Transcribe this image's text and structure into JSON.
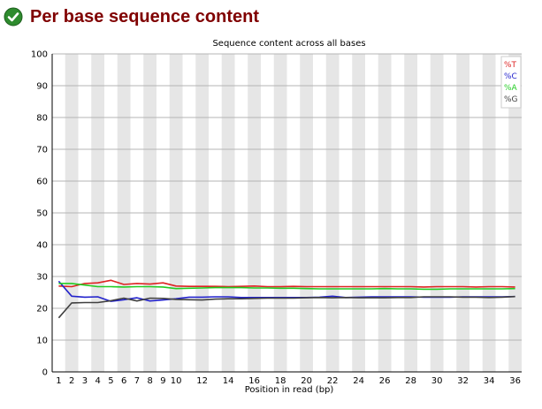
{
  "header": {
    "title": "Per base sequence content",
    "status_icon": "check-circle-icon",
    "status_color": "#2e8b2e"
  },
  "chart_data": {
    "type": "line",
    "title": "Sequence content across all bases",
    "xlabel": "Position in read (bp)",
    "ylabel": "",
    "ylim": [
      0,
      100
    ],
    "y_ticks": [
      "0",
      "10",
      "20",
      "30",
      "40",
      "50",
      "60",
      "70",
      "80",
      "90",
      "100"
    ],
    "categories": [
      "1",
      "2",
      "3",
      "4",
      "5",
      "6",
      "7",
      "8",
      "9",
      "10",
      "11",
      "12",
      "13",
      "14",
      "15",
      "16",
      "17",
      "18",
      "19",
      "20",
      "21",
      "22",
      "23",
      "24",
      "25",
      "26",
      "27",
      "28",
      "29",
      "30",
      "31",
      "32",
      "33",
      "34",
      "35",
      "36"
    ],
    "x_tick_labels": [
      "1",
      "2",
      "3",
      "4",
      "5",
      "6",
      "7",
      "8",
      "9",
      "10",
      "12",
      "14",
      "16",
      "18",
      "20",
      "22",
      "24",
      "26",
      "28",
      "30",
      "32",
      "34",
      "36"
    ],
    "grid": "horizontal, alternating vertical bands",
    "legend_position": "top-right",
    "series": [
      {
        "name": "%T",
        "color": "#dd2222",
        "values": [
          27,
          26.8,
          27.8,
          28,
          28.8,
          27.5,
          27.8,
          27.6,
          28,
          27,
          26.9,
          26.9,
          26.9,
          26.8,
          26.9,
          27,
          26.8,
          26.8,
          26.9,
          26.8,
          26.8,
          26.8,
          26.8,
          26.8,
          26.8,
          26.8,
          26.8,
          26.8,
          26.7,
          26.8,
          26.8,
          26.8,
          26.7,
          26.8,
          26.8,
          26.7
        ]
      },
      {
        "name": "%C",
        "color": "#2222cc",
        "values": [
          28.5,
          23.8,
          23.5,
          23.6,
          22.2,
          22.7,
          23.3,
          22.3,
          22.6,
          23,
          23.5,
          23.5,
          23.6,
          23.6,
          23.4,
          23.4,
          23.4,
          23.4,
          23.4,
          23.4,
          23.5,
          23.8,
          23.4,
          23.5,
          23.6,
          23.6,
          23.6,
          23.6,
          23.5,
          23.5,
          23.5,
          23.6,
          23.6,
          23.6,
          23.6,
          23.7
        ]
      },
      {
        "name": "%A",
        "color": "#22cc22",
        "values": [
          27.8,
          27.8,
          27.3,
          26.8,
          26.8,
          26.7,
          26.8,
          26.8,
          26.7,
          26.2,
          26.3,
          26.4,
          26.5,
          26.5,
          26.5,
          26.4,
          26.4,
          26.3,
          26.3,
          26.2,
          26.1,
          26.1,
          26.1,
          26.1,
          26.1,
          26.2,
          26.1,
          26.1,
          26.0,
          26.0,
          26.1,
          26.1,
          26.1,
          26.1,
          26.1,
          26.2
        ]
      },
      {
        "name": "%G",
        "color": "#404040",
        "values": [
          17,
          21.7,
          21.8,
          21.8,
          22.4,
          23.2,
          22.3,
          23.2,
          23.1,
          22.8,
          22.7,
          22.6,
          22.9,
          23.0,
          23.0,
          23.1,
          23.2,
          23.2,
          23.2,
          23.3,
          23.4,
          23.3,
          23.4,
          23.3,
          23.3,
          23.3,
          23.4,
          23.4,
          23.6,
          23.6,
          23.6,
          23.5,
          23.5,
          23.4,
          23.5,
          23.7
        ]
      }
    ]
  }
}
